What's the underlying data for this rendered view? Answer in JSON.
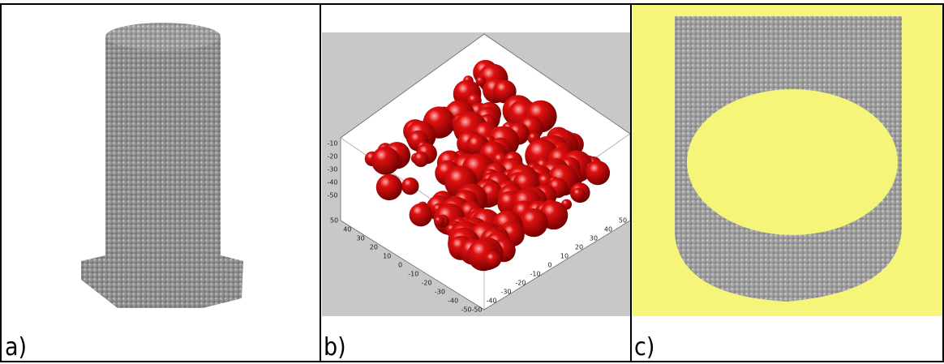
{
  "panels": [
    {
      "label": "a)"
    },
    {
      "label": "b)",
      "z_ticks": [
        -10,
        -20,
        -30,
        -40,
        -50
      ],
      "x_ticks": [
        50,
        40,
        30,
        20,
        10,
        0,
        -10,
        -20,
        -30,
        -40,
        -50
      ],
      "y_ticks": [
        -50,
        -40,
        -30,
        -20,
        -10,
        0,
        10,
        20,
        30,
        40,
        50
      ]
    },
    {
      "label": "c)"
    }
  ]
}
